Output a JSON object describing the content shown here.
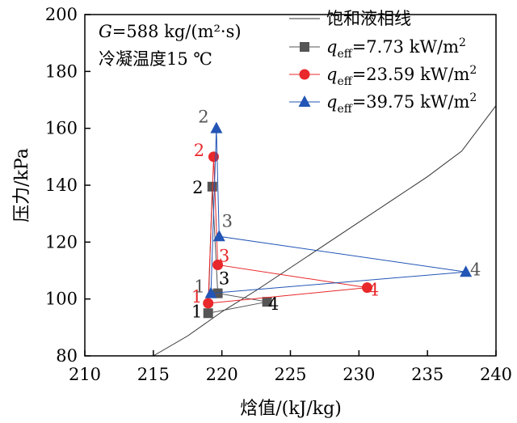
{
  "chart_data": {
    "type": "line",
    "xlabel": "焓值/(kJ/kg)",
    "ylabel": "压力/kPa",
    "xlim": [
      210,
      240
    ],
    "ylim": [
      80,
      200
    ],
    "xticks": [
      "210",
      "215",
      "220",
      "225",
      "230",
      "235",
      "240"
    ],
    "yticks": [
      "80",
      "100",
      "120",
      "140",
      "160",
      "180",
      "200"
    ],
    "annotations": {
      "line1_italic": "G",
      "line1_rest": "=588 kg/(m²·s)",
      "line2": "冷凝温度15 ℃"
    },
    "saturation_line": {
      "name": "饱和液相线",
      "color": "#333333",
      "points": [
        [
          215.0,
          80
        ],
        [
          217.5,
          87
        ],
        [
          220.0,
          95.5
        ],
        [
          222.5,
          103
        ],
        [
          225.0,
          111
        ],
        [
          227.5,
          119
        ],
        [
          230.0,
          127
        ],
        [
          232.5,
          135
        ],
        [
          235.0,
          143
        ],
        [
          237.5,
          152
        ],
        [
          240.0,
          168
        ]
      ]
    },
    "series": [
      {
        "name": "q_eff=7.73 kW/m²",
        "legend_prefix": "q",
        "legend_sub": "eff",
        "legend_value": "=7.73 kW/m",
        "legend_sup": "2",
        "color": "#555555",
        "marker": "square",
        "point_label_color": "#000000",
        "points": [
          {
            "x": 219.0,
            "y": 95.0,
            "label": "1"
          },
          {
            "x": 219.3,
            "y": 139.5,
            "label": "2"
          },
          {
            "x": 219.7,
            "y": 102.0,
            "label": "3"
          },
          {
            "x": 223.3,
            "y": 99.0,
            "label": "4"
          }
        ]
      },
      {
        "name": "q_eff=23.59 kW/m²",
        "legend_prefix": "q",
        "legend_sub": "eff",
        "legend_value": "=23.59 kW/m",
        "legend_sup": "2",
        "color": "#e8282b",
        "marker": "circle",
        "point_label_color": "#e8282b",
        "points": [
          {
            "x": 219.0,
            "y": 98.5,
            "label": "1"
          },
          {
            "x": 219.4,
            "y": 150.0,
            "label": "2"
          },
          {
            "x": 219.7,
            "y": 112.0,
            "label": "3"
          },
          {
            "x": 230.6,
            "y": 104.0,
            "label": "4"
          }
        ]
      },
      {
        "name": "q_eff=39.75 kW/m²",
        "legend_prefix": "q",
        "legend_sub": "eff",
        "legend_value": "=39.75 kW/m",
        "legend_sup": "2",
        "color": "#2255b5",
        "marker": "triangle",
        "point_label_color": "#555555",
        "points": [
          {
            "x": 219.2,
            "y": 102.0,
            "label": "1"
          },
          {
            "x": 219.6,
            "y": 160.0,
            "label": "2"
          },
          {
            "x": 219.8,
            "y": 122.0,
            "label": "3"
          },
          {
            "x": 237.8,
            "y": 109.5,
            "label": "4"
          }
        ]
      }
    ]
  }
}
